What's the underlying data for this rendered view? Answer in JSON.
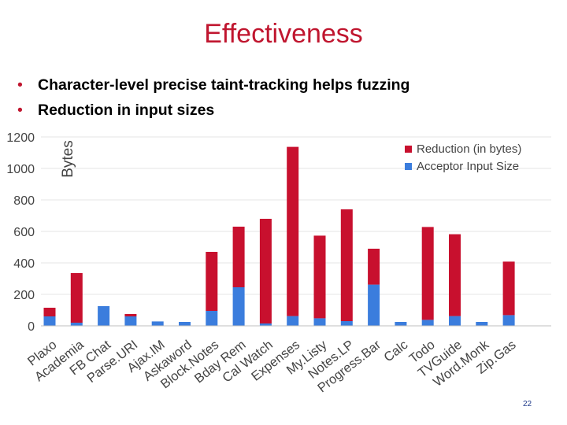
{
  "slide": {
    "title": "Effectiveness",
    "bullets": [
      "Character-level precise taint-tracking helps fuzzing",
      "Reduction in input sizes"
    ],
    "page_number": "22"
  },
  "colors": {
    "title": "#c0162f",
    "reduction": "#c8102e",
    "acceptor": "#3b7ddd",
    "axis_text": "#444444"
  },
  "chart_data": {
    "type": "bar",
    "stacked": true,
    "title": "",
    "xlabel": "",
    "ylabel": "Bytes",
    "ylim": [
      0,
      1200
    ],
    "yticks": [
      0,
      200,
      400,
      600,
      800,
      1000,
      1200
    ],
    "legend_position": "top-right",
    "categories": [
      "Plaxo",
      "Academia",
      "FB Chat",
      "Parse.URI",
      "Ajax.IM",
      "Askaword",
      "Block.Notes",
      "Bday Rem",
      "Cal Watch",
      "Expenses",
      "My.Listy",
      "Notes.LP",
      "Progress.Bar",
      "Calc",
      "Todo",
      "TVGuide",
      "Word.Monk",
      "Zip.Gas"
    ],
    "series": [
      {
        "name": "Acceptor Input Size",
        "color": "#3b7ddd",
        "values": [
          60,
          20,
          125,
          60,
          28,
          25,
          95,
          245,
          15,
          62,
          48,
          30,
          262,
          25,
          38,
          62,
          25,
          68
        ]
      },
      {
        "name": "Reduction (in bytes)",
        "color": "#c8102e",
        "values": [
          55,
          315,
          0,
          15,
          0,
          0,
          375,
          385,
          665,
          1075,
          525,
          710,
          228,
          0,
          590,
          520,
          0,
          340
        ]
      }
    ]
  }
}
